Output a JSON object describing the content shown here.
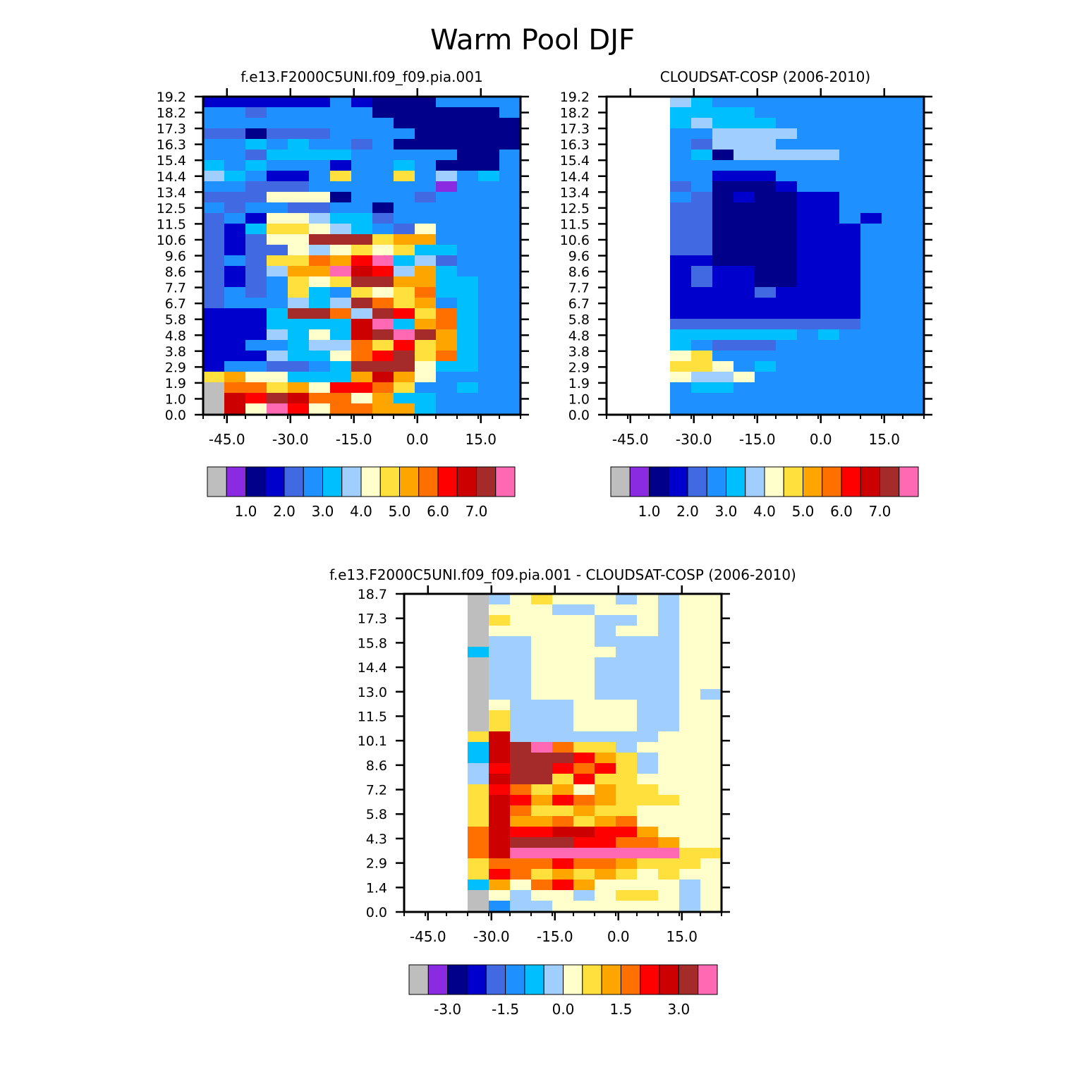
{
  "figure_title": "Warm Pool DJF",
  "palette": [
    "#bebebe",
    "#8a2be2",
    "#00008b",
    "#0000cd",
    "#4169e1",
    "#1e90ff",
    "#00bfff",
    "#a0cfff",
    "#ffffcc",
    "#ffe03c",
    "#ffa500",
    "#ff7000",
    "#ff0000",
    "#cc0000",
    "#a52a2a",
    "#ff69b4"
  ],
  "chart_data": [
    {
      "type": "heatmap",
      "title": "f.e13.F2000C5UNI.f09_f09.pia.001",
      "x_ticks": [
        "-45.0",
        "-30.0",
        "-15.0",
        "0.0",
        "15.0"
      ],
      "y_ticks": [
        "0.0",
        "1.0",
        "1.9",
        "2.9",
        "3.8",
        "4.8",
        "5.8",
        "6.7",
        "7.7",
        "8.6",
        "9.6",
        "10.6",
        "11.5",
        "12.5",
        "13.4",
        "14.4",
        "15.4",
        "16.3",
        "17.3",
        "18.2",
        "19.2"
      ],
      "colorbar_labels": [
        "1.0",
        "2.0",
        "3.0",
        "4.0",
        "5.0",
        "6.0",
        "7.0"
      ],
      "grid": [
        "3333335322255555",
        "5545555522222255",
        "5555555552222225",
        "4424445555222225",
        "5565655452222225",
        "5546666555552255",
        "6565553556522255",
        "7653359559575655",
        "5544455555515555",
        "4448882555455555",
        "5455445525555555",
        "4538876645555555",
        "4369987654855555",
        "43488EEE9AA55555",
        "4344878989665555",
        "45499BACF6745555",
        "4347AAFDC7A65555",
        "4345989EEAA66555",
        "4545965989B66555",
        "4555767EB9A56555",
        "3336EEB7EC9B6555",
        "3336666DF6AB6555",
        "3337686DEFEA6555",
        "3355677B9C9A6555",
        "3337668BCE9B6555",
        "3554456EEE866555",
        "9A88666ADA855555",
        "0BB9A8CCB9556555",
        "0DCEDBB8A6655555",
        "0D8FC8BBAA655555"
      ]
    },
    {
      "type": "heatmap",
      "title": "CLOUDSAT-COSP (2006-2010)",
      "x_ticks": [
        "-45.0",
        "-30.0",
        "-15.0",
        "0.0",
        "15.0"
      ],
      "y_ticks": [
        "0.0",
        "1.0",
        "1.9",
        "2.9",
        "3.8",
        "4.8",
        "5.8",
        "6.7",
        "7.7",
        "8.6",
        "9.6",
        "10.6",
        "11.5",
        "12.5",
        "13.4",
        "14.4",
        "15.4",
        "16.3",
        "17.3",
        "18.2",
        "19.2"
      ],
      "colorbar_labels": [
        "1.0",
        "2.0",
        "3.0",
        "4.0",
        "5.0",
        "6.0",
        "7.0"
      ],
      "grid": [
        "FFF765555555555",
        "FFF666655555555",
        "FFF676665555555",
        "FFF557777555555",
        "FFF547775555555",
        "FFF562777775555",
        "FFF555555555555",
        "FFF553335555555",
        "FFF452223555555",
        "FFF542322335555",
        "FFF442222335555",
        "FFF442222335355",
        "FFF442222333555",
        "FFF442222333555",
        "FFF442222333555",
        "FFF332222333555",
        "FFF343322333555",
        "FFF343322333555",
        "FFF333343333555",
        "FFF333333333555",
        "FFF333333333555",
        "FFF444444444555",
        "FFF666666565555",
        "FFF654445555555",
        "FFF895555555555",
        "FFF998565555555",
        "FFF877855555555",
        "FFF566555555555",
        "FFF555555555555",
        "FFF555555555555"
      ]
    },
    {
      "type": "heatmap",
      "title": "f.e13.F2000C5UNI.f09_f09.pia.001  -  CLOUDSAT-COSP (2006-2010)",
      "x_ticks": [
        "-45.0",
        "-30.0",
        "-15.0",
        "0.0",
        "15.0"
      ],
      "y_ticks": [
        "0.0",
        "1.4",
        "2.9",
        "4.3",
        "5.8",
        "7.2",
        "8.6",
        "10.1",
        "11.5",
        "13.0",
        "14.4",
        "15.8",
        "17.3",
        "18.7"
      ],
      "colorbar_labels": [
        "-3.0",
        "-1.5",
        "0.0",
        "1.5",
        "3.0"
      ],
      "grid": [
        "FFF0789888787888",
        "FFF0888778887888",
        "FFF0988887787888",
        "FFF0888887887888",
        "FFF0778887777888",
        "FFF6778888777888",
        "FFF0778887777888",
        "FFF0778887777888",
        "FFF0778887777888",
        "FFF0778887777878",
        "FFF0877788877888",
        "FFF0977788877888",
        "FFF0977788877888",
        "FFF9D777777788888",
        "FFF6DEFB997888888",
        "FFF6DEEECA978888",
        "FFF7CEECBC978888",
        "FFF7DEE9C9988888",
        "FFF9CB9A8A99888888",
        "FFF9DCACBA999888",
        "FFF9DB99A99888888",
        "FFF9DAAB9AB88888",
        "FFFBDCCDDCCA8888",
        "FFFBDEEECCBBA888",
        "FFFBDFFFFFFFF999",
        "FFF9BBBCBBA99989",
        "FFF9CB9A9A989888",
        "FFF6A8BCA8888788",
        "FFF0878878998788",
        "FFF0577888888788"
      ]
    }
  ]
}
